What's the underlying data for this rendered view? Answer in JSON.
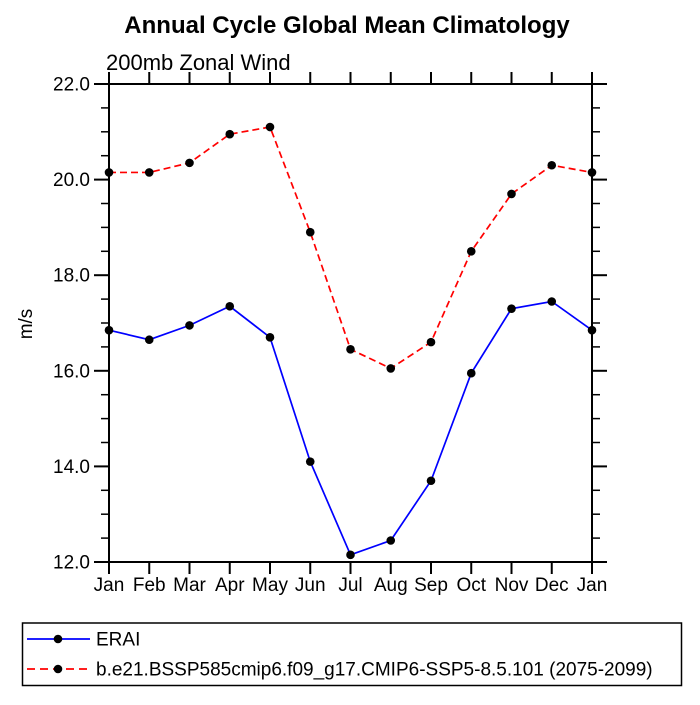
{
  "chart_data": {
    "type": "line",
    "title": "Annual Cycle Global Mean Climatology",
    "subtitle": "200mb Zonal Wind",
    "ylabel": "m/s",
    "categories": [
      "Jan",
      "Feb",
      "Mar",
      "Apr",
      "May",
      "Jun",
      "Jul",
      "Aug",
      "Sep",
      "Oct",
      "Nov",
      "Dec",
      "Jan"
    ],
    "ylim": [
      12.0,
      22.0
    ],
    "yticks": [
      12.0,
      14.0,
      16.0,
      18.0,
      20.0,
      22.0
    ],
    "ytick_labels": [
      "12.0",
      "14.0",
      "16.0",
      "18.0",
      "20.0",
      "22.0"
    ],
    "minor_tick_step": 0.5,
    "grid": false,
    "legend_position": "bottom-box",
    "marker": "filled-circle",
    "marker_color": "#000000",
    "axis_color": "#000000",
    "background_color": "#ffffff",
    "series": [
      {
        "name": "ERAI",
        "color": "#0000ff",
        "style": "solid",
        "values": [
          16.85,
          16.65,
          16.95,
          17.35,
          16.7,
          14.1,
          12.15,
          12.45,
          13.7,
          15.95,
          17.3,
          17.45,
          16.85
        ]
      },
      {
        "name": "b.e21.BSSP585cmip6.f09_g17.CMIP6-SSP5-8.5.101 (2075-2099)",
        "color": "#ff0000",
        "style": "dashed",
        "values": [
          20.15,
          20.15,
          20.35,
          20.95,
          21.1,
          18.9,
          16.45,
          16.05,
          16.6,
          18.5,
          19.7,
          20.3,
          20.15
        ]
      }
    ]
  }
}
